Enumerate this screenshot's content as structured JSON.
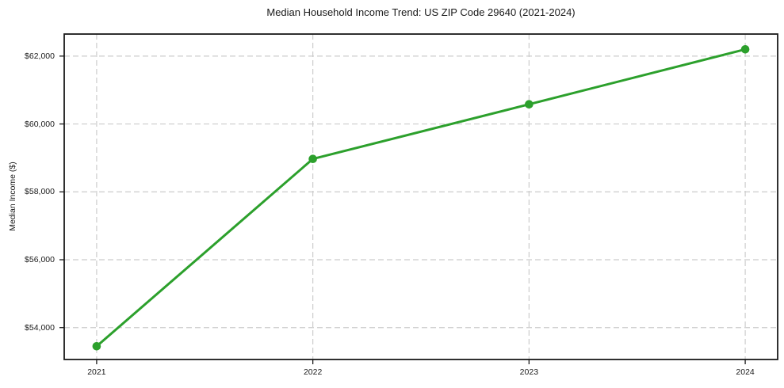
{
  "chart_data": {
    "type": "line",
    "title": "Median Household Income Trend: US ZIP Code 29640 (2021-2024)",
    "xlabel": "",
    "ylabel": "Median Income ($)",
    "x": [
      2021,
      2022,
      2023,
      2024
    ],
    "x_tick_labels": [
      "2021",
      "2022",
      "2023",
      "2024"
    ],
    "values": [
      53450,
      58970,
      60580,
      62200
    ],
    "y_ticks": [
      54000,
      56000,
      58000,
      60000,
      62000
    ],
    "y_tick_labels": [
      "$54,000",
      "$56,000",
      "$58,000",
      "$60,000",
      "$62,000"
    ],
    "xlim": [
      2020.85,
      2024.15
    ],
    "ylim": [
      53060,
      62650
    ],
    "grid": true,
    "grid_style": "dashed",
    "legend": "none",
    "marker": "circle"
  },
  "colors": {
    "line": "#2ca02c",
    "marker_fill": "#2ca02c",
    "grid": "#cccccc",
    "spine": "#1a1a1a",
    "tick": "#1a1a1a",
    "text": "#1a1a1a",
    "background": "#ffffff"
  }
}
